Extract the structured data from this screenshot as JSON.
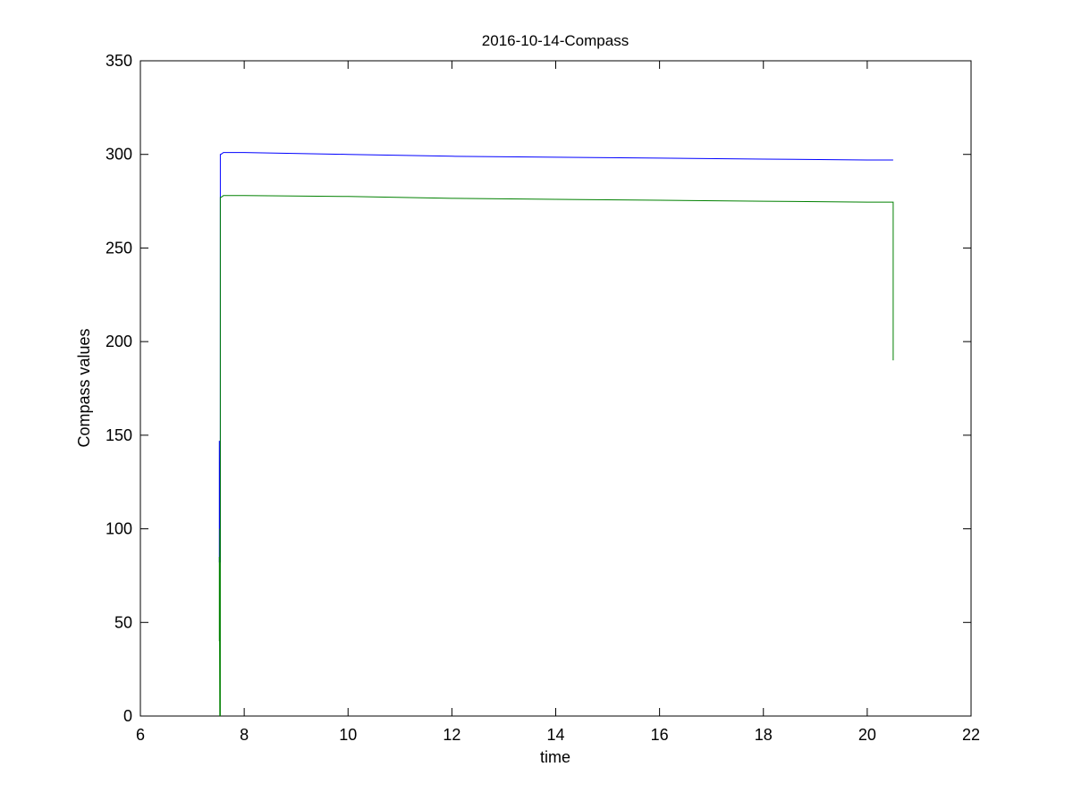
{
  "chart_data": {
    "type": "line",
    "title": "2016-10-14-Compass",
    "xlabel": "time",
    "ylabel": "Compass values",
    "xlim": [
      6,
      22
    ],
    "ylim": [
      0,
      350
    ],
    "xticks": [
      6,
      8,
      10,
      12,
      14,
      16,
      18,
      20,
      22
    ],
    "yticks": [
      0,
      50,
      100,
      150,
      200,
      250,
      300,
      350
    ],
    "grid": false,
    "legend": "none",
    "series": [
      {
        "color": "#0000ff",
        "x": [
          7.52,
          7.52,
          7.53,
          7.53,
          7.54,
          7.54,
          7.55,
          7.6,
          8.0,
          10.0,
          12.0,
          14.0,
          16.0,
          18.0,
          20.0,
          20.5,
          20.5
        ],
        "y": [
          82,
          147,
          82,
          105,
          82,
          300,
          300,
          301,
          301,
          300,
          299,
          298.5,
          298,
          297.5,
          297,
          297,
          297
        ]
      },
      {
        "color": "#008000",
        "x": [
          7.52,
          7.52,
          7.53,
          7.53,
          7.54,
          7.54,
          7.55,
          7.6,
          8.0,
          10.0,
          12.0,
          14.0,
          16.0,
          18.0,
          20.0,
          20.5,
          20.5
        ],
        "y": [
          40,
          85,
          0,
          100,
          0,
          277,
          277,
          278,
          278,
          277.5,
          276.5,
          276,
          275.5,
          275,
          274.5,
          274.5,
          190
        ]
      }
    ]
  }
}
